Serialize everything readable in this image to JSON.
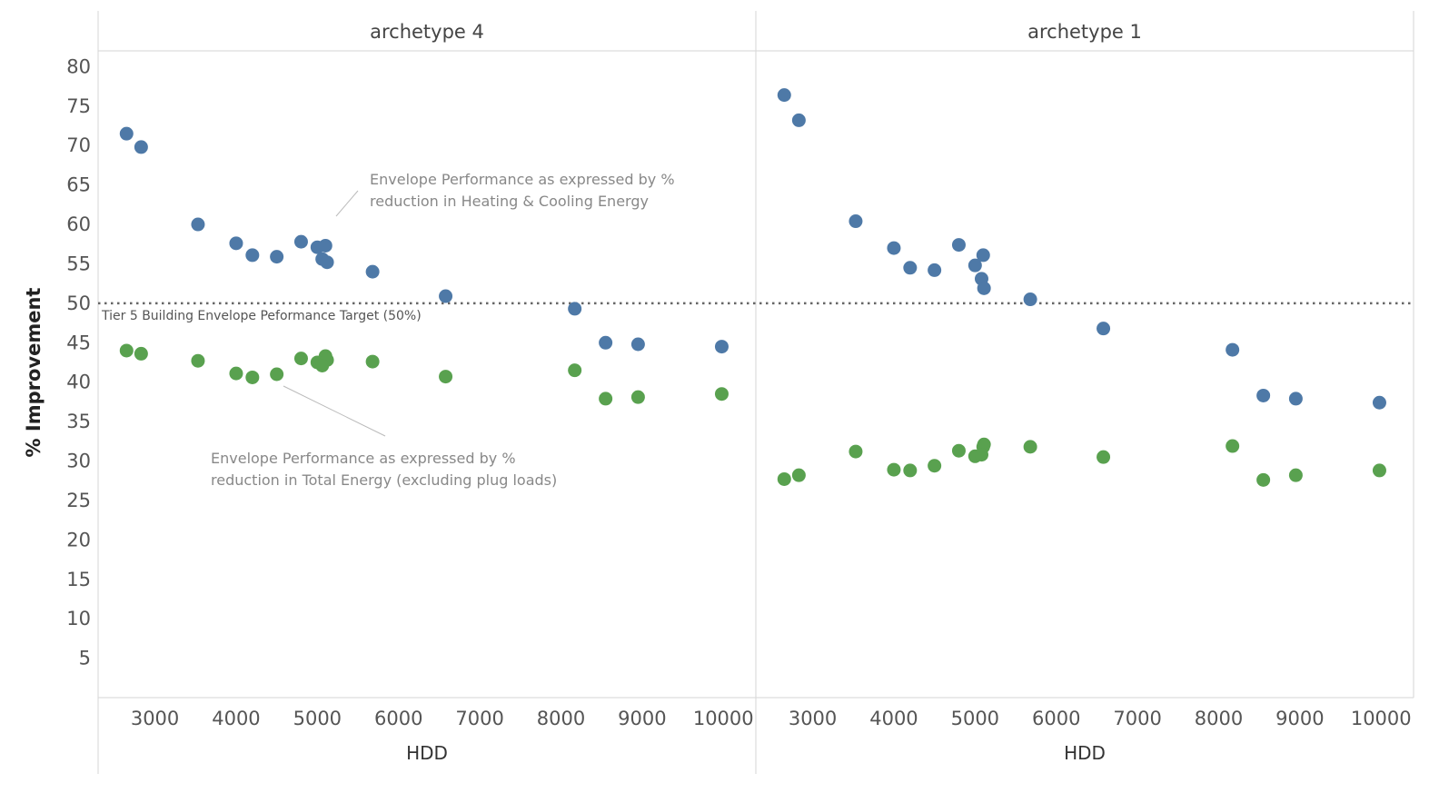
{
  "chart_data": {
    "type": "scatter",
    "ylabel": "% Improvement",
    "xlabel": "HDD",
    "ylim": [
      0,
      82
    ],
    "xlim": [
      2300,
      10400
    ],
    "y_ticks": [
      "5",
      "10",
      "15",
      "20",
      "25",
      "30",
      "35",
      "40",
      "45",
      "50",
      "55",
      "60",
      "65",
      "70",
      "75",
      "80"
    ],
    "x_ticks": [
      "3000",
      "4000",
      "5000",
      "6000",
      "7000",
      "8000",
      "9000",
      "10000"
    ],
    "grid": false,
    "colors": {
      "heating_cooling": "#4e79a7",
      "total_energy": "#59a14f",
      "reference": "#666666"
    },
    "reference_line": {
      "value": 50,
      "label": "Tier 5 Building Envelope Peformance Target (50%)"
    },
    "panels": [
      {
        "title": "archetype 4",
        "series": [
          {
            "x": [
              2650,
              2830,
              3530,
              4000,
              4200,
              4500,
              4800,
              5000,
              5100,
              5060,
              5120,
              5680,
              6580,
              8170,
              8550,
              8950,
              9980
            ],
            "y": [
              71.5,
              69.8,
              60.0,
              57.6,
              56.1,
              55.9,
              57.8,
              57.1,
              57.3,
              55.6,
              55.2,
              54.0,
              50.9,
              49.3,
              45.0,
              44.8,
              44.5
            ]
          },
          {
            "x": [
              2650,
              2830,
              3530,
              4000,
              4200,
              4500,
              4800,
              5000,
              5100,
              5120,
              5060,
              5680,
              6580,
              8170,
              8550,
              8950,
              9980
            ],
            "y": [
              44.0,
              43.6,
              42.7,
              41.1,
              40.6,
              41.0,
              43.0,
              42.5,
              43.3,
              42.8,
              42.1,
              42.6,
              40.7,
              41.5,
              37.9,
              38.1,
              38.5
            ]
          }
        ],
        "annotations": [
          {
            "lines": [
              "Envelope Performance as expressed by %",
              "reduction in Heating & Cooling Energy"
            ]
          },
          {
            "lines": [
              "Envelope Performance as expressed by %",
              "reduction in Total Energy (excluding plug loads)"
            ]
          }
        ]
      },
      {
        "title": "archetype 1",
        "series": [
          {
            "x": [
              2650,
              2830,
              3530,
              4000,
              4200,
              4500,
              4800,
              5000,
              5100,
              5080,
              5110,
              5680,
              6580,
              8170,
              8550,
              8950,
              9980
            ],
            "y": [
              76.4,
              73.2,
              60.4,
              57.0,
              54.5,
              54.2,
              57.4,
              54.8,
              56.1,
              53.1,
              51.9,
              50.5,
              46.8,
              44.1,
              38.3,
              37.9,
              37.4
            ]
          },
          {
            "x": [
              2650,
              2830,
              3530,
              4000,
              4200,
              4500,
              4800,
              5000,
              5100,
              5110,
              5080,
              5680,
              6580,
              8170,
              8550,
              8950,
              9980
            ],
            "y": [
              27.7,
              28.2,
              31.2,
              28.9,
              28.8,
              29.4,
              31.3,
              30.6,
              31.8,
              32.1,
              30.8,
              31.8,
              30.5,
              31.9,
              27.6,
              28.2,
              28.8
            ]
          }
        ]
      }
    ]
  }
}
